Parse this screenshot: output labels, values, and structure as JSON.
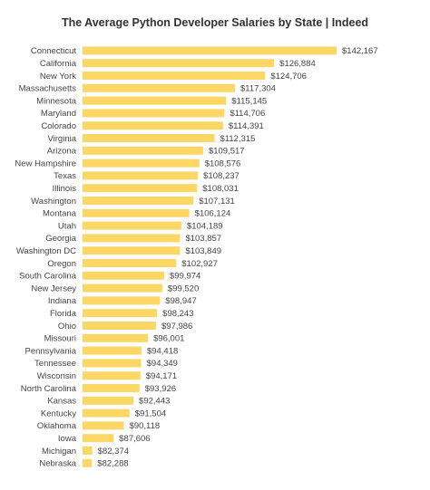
{
  "chart_data": {
    "type": "bar",
    "orientation": "horizontal",
    "title": "The Average Python Developer Salaries by State | Indeed",
    "xlabel": "",
    "ylabel": "",
    "xlim": [
      80000,
      142167
    ],
    "grid": false,
    "bar_color": "#fdd766",
    "categories": [
      "Connecticut",
      "California",
      "New York",
      "Massachusetts",
      "Minnesota",
      "Maryland",
      "Colorado",
      "Virginia",
      "Arizona",
      "New Hampshire",
      "Texas",
      "Illinois",
      "Washington",
      "Montana",
      "Utah",
      "Georgia",
      "Washington DC",
      "Oregon",
      "South Carolina",
      "New Jersey",
      "Indiana",
      "Florida",
      "Ohio",
      "Missouri",
      "Pennsylvania",
      "Tennessee",
      "Wisconsin",
      "North Carolina",
      "Kansas",
      "Kentucky",
      "Oklahoma",
      "Iowa",
      "Michigan",
      "Nebraska"
    ],
    "values": [
      142167,
      126884,
      124706,
      117304,
      115145,
      114706,
      114391,
      112315,
      109517,
      108576,
      108237,
      108031,
      107131,
      106124,
      104189,
      103857,
      103849,
      102927,
      99974,
      99520,
      98947,
      98243,
      97986,
      96001,
      94418,
      94349,
      94171,
      93926,
      92443,
      91504,
      90118,
      87606,
      82374,
      82288
    ],
    "value_labels": [
      "$142,167",
      "$126,884",
      "$124,706",
      "$117,304",
      "$115,145",
      "$114,706",
      "$114,391",
      "$112,315",
      "$109,517",
      "$108,576",
      "$108,237",
      "$108,031",
      "$107,131",
      "$106,124",
      "$104,189",
      "$103,857",
      "$103,849",
      "$102,927",
      "$99,974",
      "$99,520",
      "$98,947",
      "$98,243",
      "$97,986",
      "$96,001",
      "$94,418",
      "$94,349",
      "$94,171",
      "$93,926",
      "$92,443",
      "$91,504",
      "$90,118",
      "$87,606",
      "$82,374",
      "$82,288"
    ]
  }
}
